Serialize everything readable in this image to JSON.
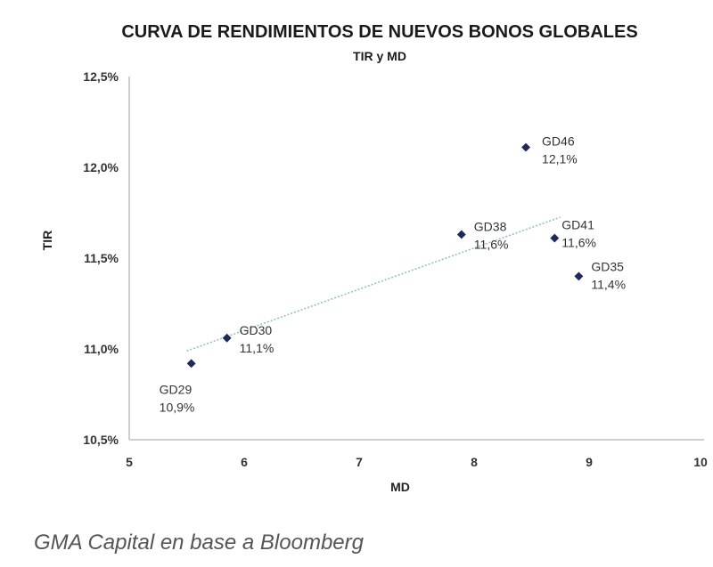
{
  "chart_data": {
    "type": "scatter",
    "title": "CURVA DE RENDIMIENTOS DE NUEVOS BONOS GLOBALES",
    "subtitle": "TIR y MD",
    "xlabel": "MD",
    "ylabel": "TIR",
    "xlim": [
      5,
      10
    ],
    "ylim": [
      10.5,
      12.5
    ],
    "x_ticks": [
      5,
      6,
      7,
      8,
      9,
      10
    ],
    "y_ticks": [
      10.5,
      11.0,
      11.5,
      12.0,
      12.5
    ],
    "y_tick_labels": [
      "10,5%",
      "11,0%",
      "11,5%",
      "12,0%",
      "12,5%"
    ],
    "x_tick_labels": [
      "5",
      "6",
      "7",
      "8",
      "9",
      "10"
    ],
    "grid": false,
    "point_color": "#1f2a5a",
    "trend_color": "#8fc4bd",
    "points": [
      {
        "label": "GD29",
        "value_label": "10,9%",
        "x": 5.54,
        "y": 10.92
      },
      {
        "label": "GD30",
        "value_label": "11,1%",
        "x": 5.85,
        "y": 11.06
      },
      {
        "label": "GD38",
        "value_label": "11,6%",
        "x": 7.89,
        "y": 11.63
      },
      {
        "label": "GD46",
        "value_label": "12,1%",
        "x": 8.45,
        "y": 12.11
      },
      {
        "label": "GD41",
        "value_label": "11,6%",
        "x": 8.7,
        "y": 11.61
      },
      {
        "label": "GD35",
        "value_label": "11,4%",
        "x": 8.91,
        "y": 11.4
      }
    ],
    "trendline": {
      "x_start": 5.5,
      "x_end": 8.75
    }
  },
  "source": "GMA Capital en base a Bloomberg"
}
